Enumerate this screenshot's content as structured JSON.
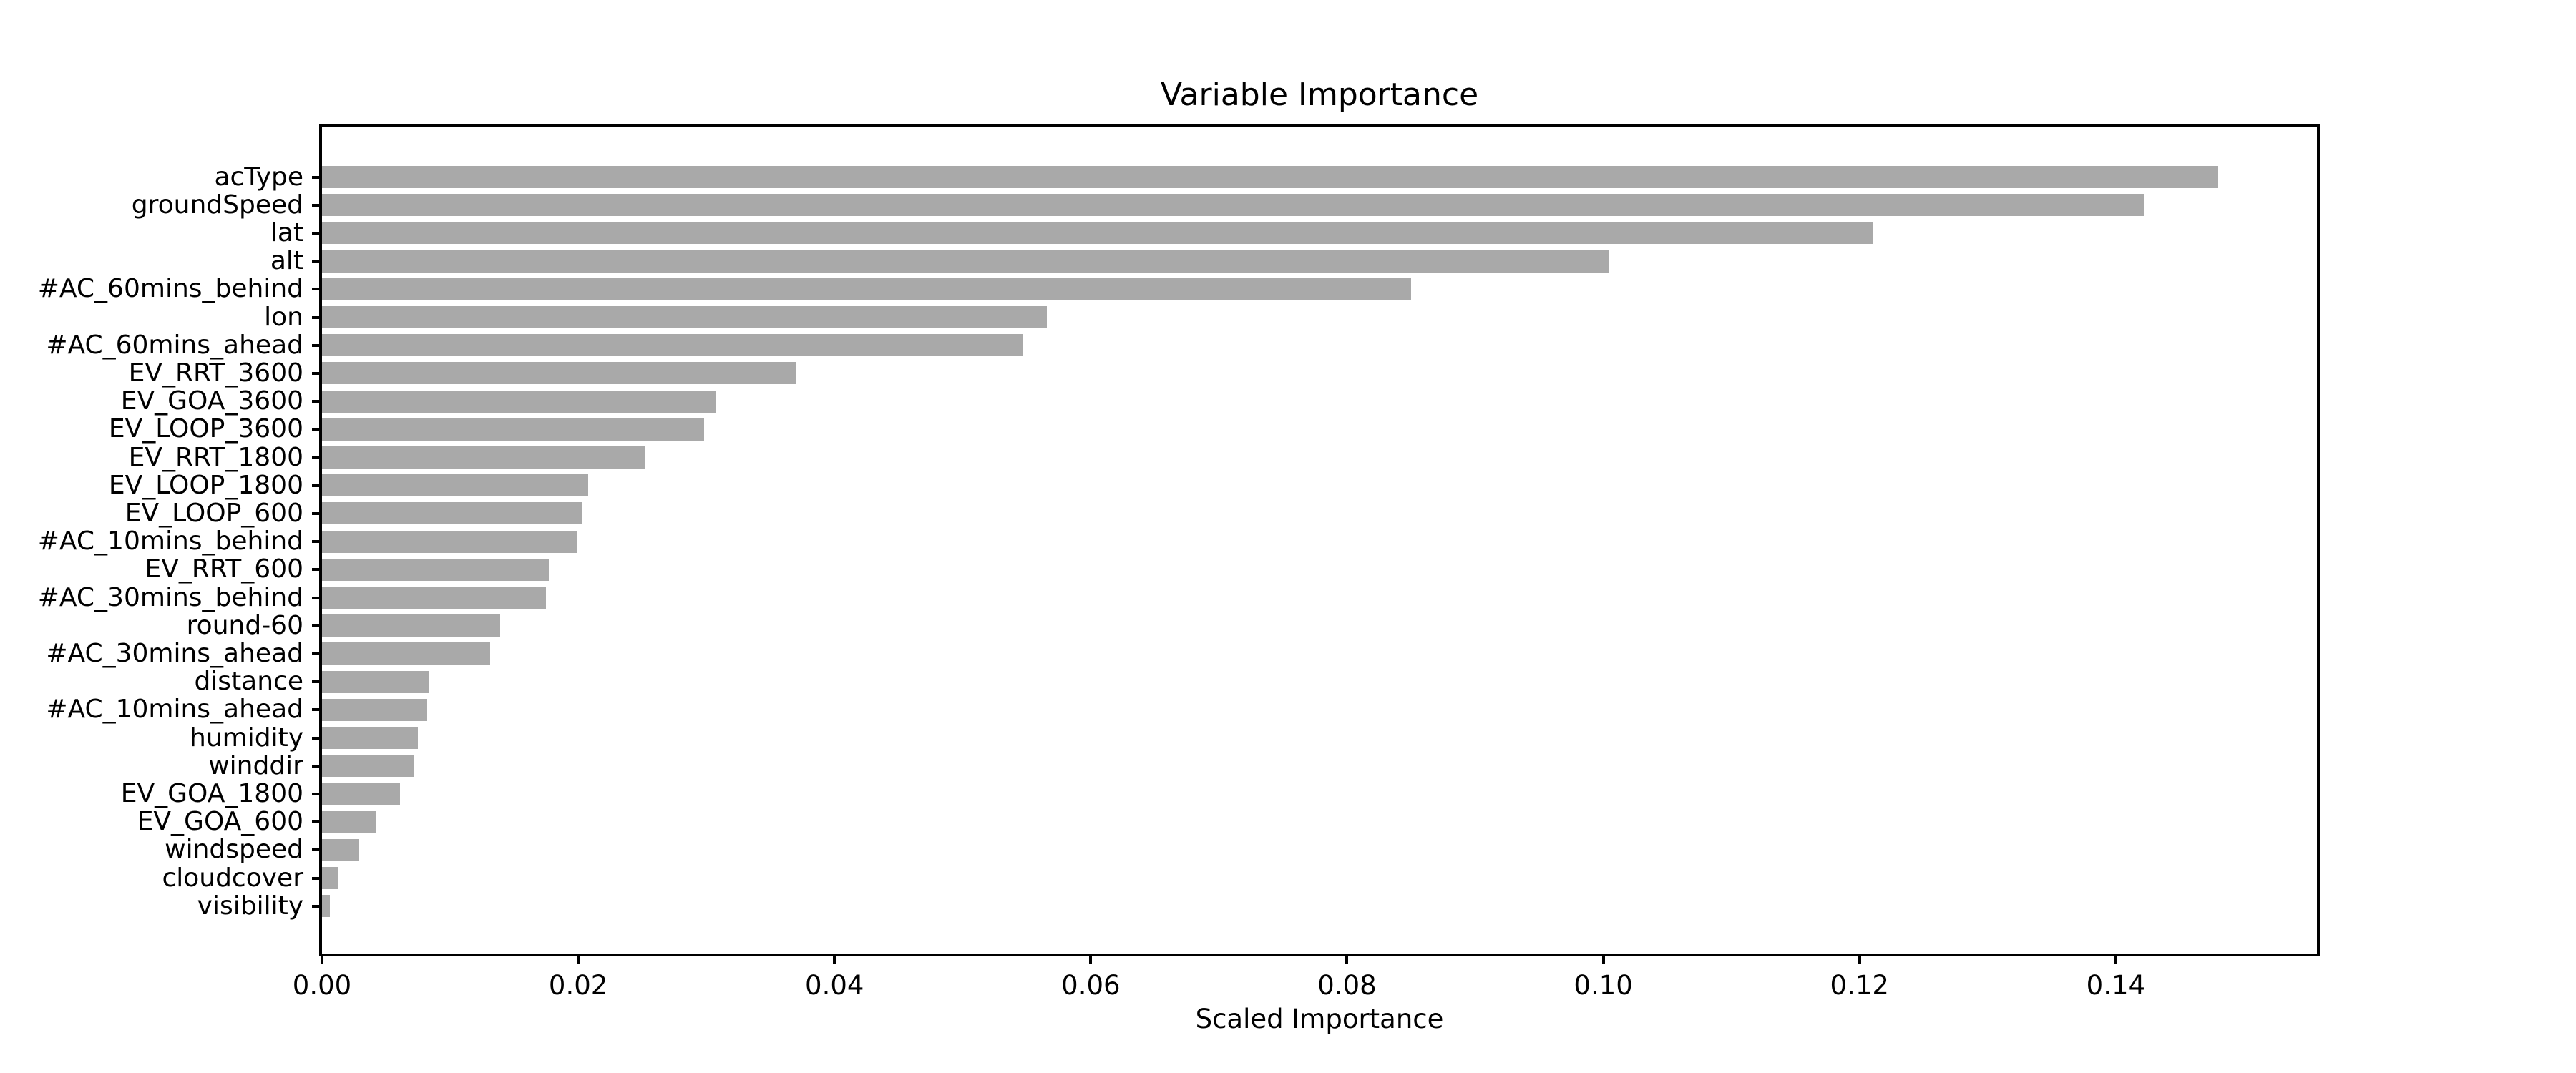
{
  "chart_data": {
    "type": "bar",
    "orientation": "horizontal",
    "title": "Variable Importance",
    "xlabel": "Scaled Importance",
    "bar_color": "#a9a9a9",
    "axis_color": "#000000",
    "background_color": "#ffffff",
    "grid": false,
    "legend": "none",
    "xlim": [
      0,
      0.1557
    ],
    "xticks": [
      {
        "value": 0.0,
        "label": "0.00"
      },
      {
        "value": 0.02,
        "label": "0.02"
      },
      {
        "value": 0.04,
        "label": "0.04"
      },
      {
        "value": 0.06,
        "label": "0.06"
      },
      {
        "value": 0.08,
        "label": "0.08"
      },
      {
        "value": 0.1,
        "label": "0.10"
      },
      {
        "value": 0.12,
        "label": "0.12"
      },
      {
        "value": 0.14,
        "label": "0.14"
      }
    ],
    "categories": [
      "acType",
      "groundSpeed",
      "lat",
      "alt",
      "#AC_60mins_behind",
      "lon",
      "#AC_60mins_ahead",
      "EV_RRT_3600",
      "EV_GOA_3600",
      "EV_LOOP_3600",
      "EV_RRT_1800",
      "EV_LOOP_1800",
      "EV_LOOP_600",
      "#AC_10mins_behind",
      "EV_RRT_600",
      "#AC_30mins_behind",
      "round-60",
      "#AC_30mins_ahead",
      "distance",
      "#AC_10mins_ahead",
      "humidity",
      "winddir",
      "EV_GOA_1800",
      "EV_GOA_600",
      "windspeed",
      "cloudcover",
      "visibility"
    ],
    "values": [
      0.148,
      0.1422,
      0.121,
      0.1004,
      0.085,
      0.0566,
      0.0547,
      0.037,
      0.0307,
      0.0298,
      0.0252,
      0.0208,
      0.0203,
      0.0199,
      0.0177,
      0.0175,
      0.0139,
      0.0131,
      0.0083,
      0.0082,
      0.0075,
      0.0072,
      0.0061,
      0.0042,
      0.0029,
      0.0013,
      0.0006
    ]
  }
}
